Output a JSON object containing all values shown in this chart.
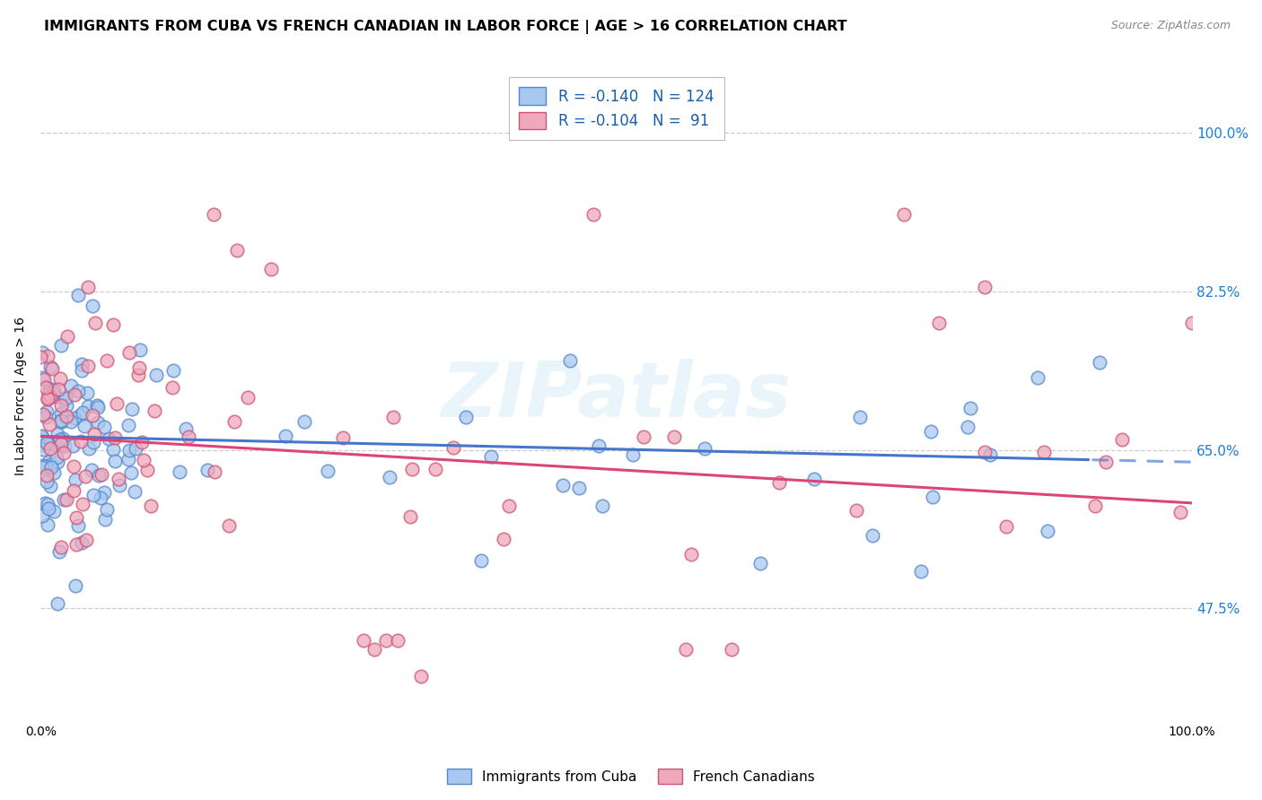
{
  "title": "IMMIGRANTS FROM CUBA VS FRENCH CANADIAN IN LABOR FORCE | AGE > 16 CORRELATION CHART",
  "source": "Source: ZipAtlas.com",
  "ylabel": "In Labor Force | Age > 16",
  "xlim": [
    0.0,
    1.0
  ],
  "ylim": [
    0.35,
    1.07
  ],
  "xtick_labels": [
    "0.0%",
    "100.0%"
  ],
  "ytick_labels": [
    "47.5%",
    "65.0%",
    "82.5%",
    "100.0%"
  ],
  "ytick_values": [
    0.475,
    0.65,
    0.825,
    1.0
  ],
  "ytick_right_color": "#1a7fdb",
  "background_color": "#ffffff",
  "grid_color": "#c8c8c8",
  "watermark": "ZIPatlas",
  "legend_r1": "R = -0.140",
  "legend_n1": "N = 124",
  "legend_r2": "R = -0.104",
  "legend_n2": "N =  91",
  "color_blue": "#a8c8f0",
  "color_pink": "#f0a8bc",
  "edge_blue": "#5588cc",
  "edge_pink": "#cc5577",
  "line_blue": "#4477cc",
  "line_pink": "#dd4477",
  "title_fontsize": 11.5,
  "label_fontsize": 10
}
